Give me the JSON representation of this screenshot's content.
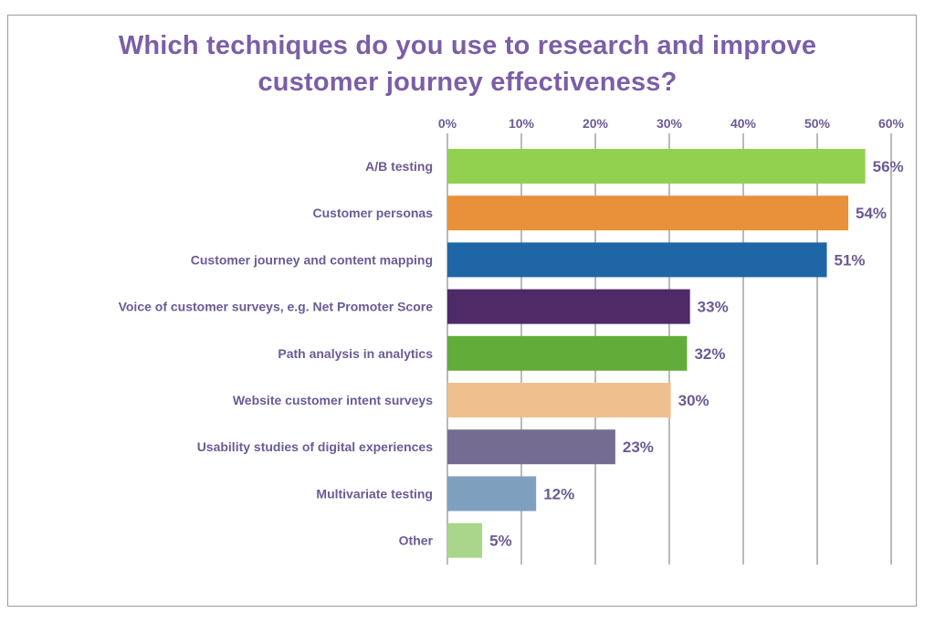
{
  "chart_data": {
    "type": "bar",
    "orientation": "horizontal",
    "title": "Which techniques do you use to research and improve customer journey effectiveness?",
    "title_lines": [
      "Which techniques do you use to research and improve",
      "customer journey effectiveness?"
    ],
    "xlim": [
      0,
      60
    ],
    "x_ticks": [
      0,
      10,
      20,
      30,
      40,
      50,
      60
    ],
    "x_tick_labels": [
      "0%",
      "10%",
      "20%",
      "30%",
      "40%",
      "50%",
      "60%"
    ],
    "x_axis_position": "top",
    "grid": true,
    "categories": [
      "A/B testing",
      "Customer personas",
      "Customer journey and content mapping",
      "Voice of customer surveys, e.g. Net Promoter Score",
      "Path analysis in analytics",
      "Website customer intent surveys",
      "Usability studies of digital experiences",
      "Multivariate testing",
      "Other"
    ],
    "values": [
      56.5,
      54.2,
      51.3,
      32.8,
      32.4,
      30.2,
      22.7,
      12.0,
      4.7
    ],
    "value_labels": [
      "56%",
      "54%",
      "51%",
      "33%",
      "32%",
      "30%",
      "23%",
      "12%",
      "5%"
    ],
    "colors": [
      "#92d050",
      "#e8913a",
      "#1f66a6",
      "#4e2a66",
      "#62ad3a",
      "#efc08e",
      "#756c92",
      "#7f9fbf",
      "#a9d68b"
    ]
  },
  "theme": {
    "title_color": "#7b5ea7",
    "label_color": "#6b5b95",
    "grid_color": "#8c8c8c"
  }
}
